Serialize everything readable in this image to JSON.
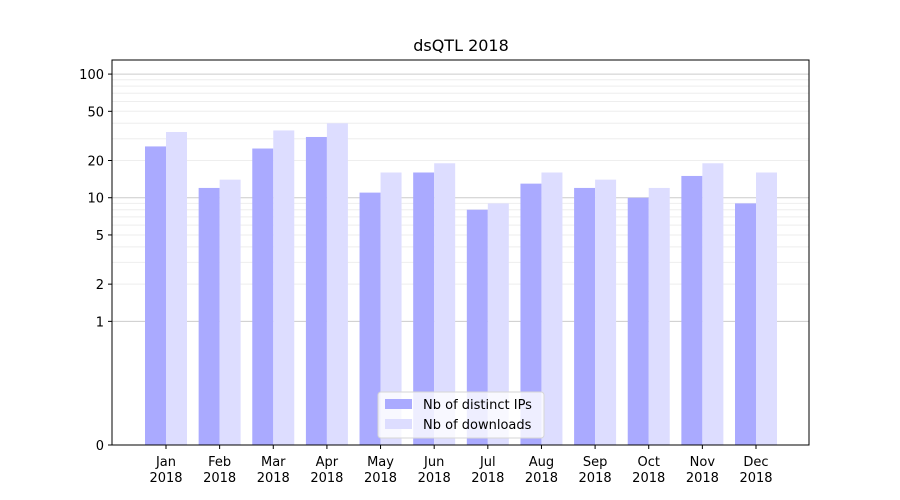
{
  "chart_data": {
    "type": "bar",
    "title": "dsQTL 2018",
    "xlabel": "",
    "ylabel": "",
    "yscale": "symlog",
    "ylim": [
      0,
      130
    ],
    "yticks": [
      0,
      1,
      2,
      5,
      10,
      20,
      50,
      100
    ],
    "grid": true,
    "legend_position": "bottom-center",
    "categories": [
      [
        "Jan",
        "2018"
      ],
      [
        "Feb",
        "2018"
      ],
      [
        "Mar",
        "2018"
      ],
      [
        "Apr",
        "2018"
      ],
      [
        "May",
        "2018"
      ],
      [
        "Jun",
        "2018"
      ],
      [
        "Jul",
        "2018"
      ],
      [
        "Aug",
        "2018"
      ],
      [
        "Sep",
        "2018"
      ],
      [
        "Oct",
        "2018"
      ],
      [
        "Nov",
        "2018"
      ],
      [
        "Dec",
        "2018"
      ]
    ],
    "series": [
      {
        "name": "Nb of distinct IPs",
        "color": "#aaaaff",
        "values": [
          26,
          12,
          25,
          31,
          11,
          16,
          8,
          13,
          12,
          10,
          15,
          9
        ]
      },
      {
        "name": "Nb of downloads",
        "color": "#ddddff",
        "values": [
          34,
          14,
          35,
          40,
          16,
          19,
          9,
          16,
          14,
          12,
          19,
          16
        ]
      }
    ]
  }
}
